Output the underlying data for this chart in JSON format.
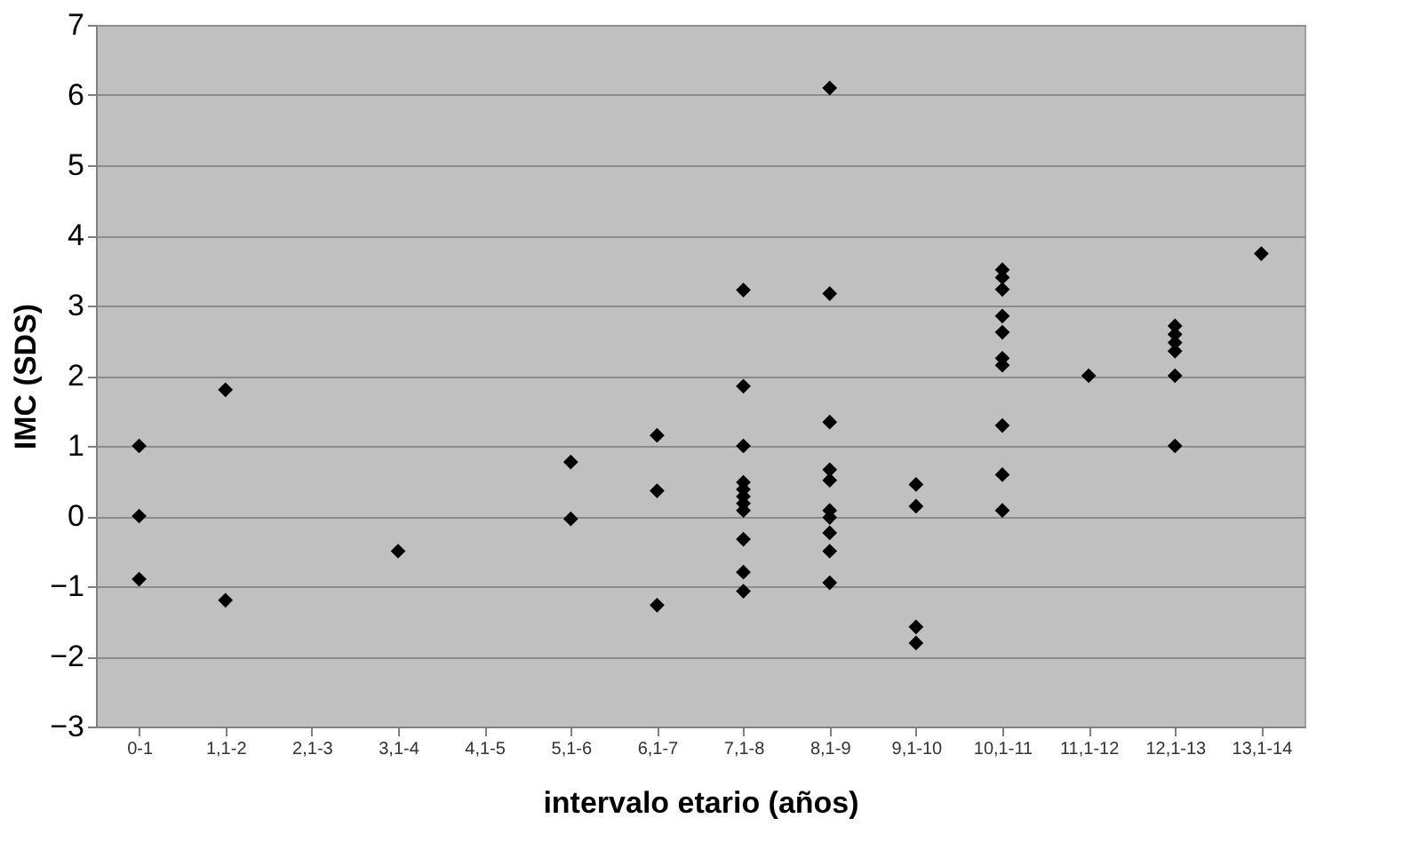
{
  "chart_data": {
    "type": "scatter",
    "xlabel": "intervalo etario (años)",
    "ylabel": "IMC (SDS)",
    "categories": [
      "0-1",
      "1,1-2",
      "2,1-3",
      "3,1-4",
      "4,1-5",
      "5,1-6",
      "6,1-7",
      "7,1-8",
      "8,1-9",
      "9,1-10",
      "10,1-11",
      "11,1-12",
      "12,1-13",
      "13,1-14"
    ],
    "series": [
      {
        "color": "#000000",
        "x": [
          "0-1",
          "0-1",
          "0-1",
          "1,1-2",
          "1,1-2",
          "3,1-4",
          "5,1-6",
          "5,1-6",
          "6,1-7",
          "6,1-7",
          "6,1-7",
          "7,1-8",
          "7,1-8",
          "7,1-8",
          "7,1-8",
          "7,1-8",
          "7,1-8",
          "7,1-8",
          "7,1-8",
          "7,1-8",
          "7,1-8",
          "7,1-8",
          "8,1-9",
          "8,1-9",
          "8,1-9",
          "8,1-9",
          "8,1-9",
          "8,1-9",
          "8,1-9",
          "8,1-9",
          "8,1-9",
          "8,1-9",
          "9,1-10",
          "9,1-10",
          "9,1-10",
          "9,1-10",
          "10,1-11",
          "10,1-11",
          "10,1-11",
          "10,1-11",
          "10,1-11",
          "10,1-11",
          "10,1-11",
          "10,1-11",
          "10,1-11",
          "10,1-11",
          "11,1-12",
          "12,1-13",
          "12,1-13",
          "12,1-13",
          "12,1-13",
          "12,1-13",
          "12,1-13",
          "13,1-14"
        ],
        "values": [
          1.0,
          0.0,
          -0.9,
          1.8,
          -1.2,
          -0.5,
          0.77,
          -0.04,
          1.15,
          0.36,
          -1.27,
          3.22,
          1.85,
          1.0,
          0.48,
          0.38,
          0.28,
          0.18,
          0.08,
          -0.33,
          -0.8,
          -1.07,
          6.1,
          3.17,
          1.34,
          0.66,
          0.51,
          0.08,
          -0.02,
          -0.24,
          -0.5,
          -0.95,
          0.45,
          0.14,
          -1.58,
          -1.81,
          3.51,
          3.4,
          3.23,
          2.85,
          2.62,
          2.25,
          2.15,
          1.29,
          0.59,
          0.08,
          2.0,
          2.71,
          2.59,
          2.47,
          2.35,
          2.0,
          1.0,
          3.74
        ]
      }
    ],
    "ylim": [
      -3,
      7
    ],
    "yticks": [
      -3,
      -2,
      -1,
      0,
      1,
      2,
      3,
      4,
      5,
      6,
      7
    ],
    "grid": "y",
    "marker": "diamond",
    "legend": false
  }
}
